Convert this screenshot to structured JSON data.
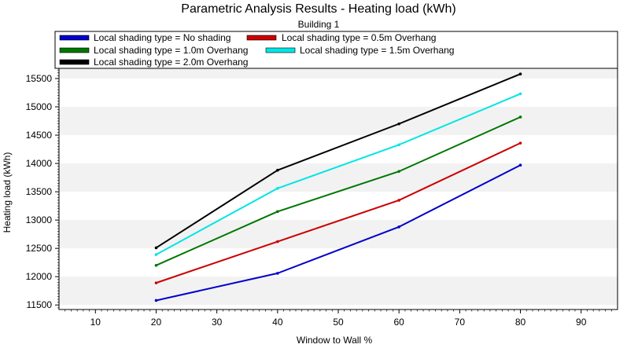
{
  "chart_data": {
    "type": "line",
    "title": "Parametric Analysis Results -  Heating load (kWh)",
    "subtitle": "Building 1",
    "xlabel": "Window to Wall %",
    "ylabel": "Heating load (kWh)",
    "xlim": [
      4,
      96
    ],
    "ylim": [
      11420,
      15680
    ],
    "xticks": [
      10,
      20,
      30,
      40,
      50,
      60,
      70,
      80,
      90
    ],
    "yticks": [
      11500,
      12000,
      12500,
      13000,
      13500,
      14000,
      14500,
      15000,
      15500
    ],
    "grid": "horizontal bands",
    "legend_position": "top",
    "x": [
      20,
      40,
      60,
      80
    ],
    "series": [
      {
        "name": "Local shading type = No shading",
        "color": "#0000cc",
        "values": [
          11580,
          12060,
          12880,
          13970
        ]
      },
      {
        "name": "Local shading type = 0.5m Overhang",
        "color": "#cc0000",
        "values": [
          11890,
          12620,
          13350,
          14360
        ]
      },
      {
        "name": "Local shading type = 1.0m Overhang",
        "color": "#007700",
        "values": [
          12200,
          13150,
          13860,
          14820
        ]
      },
      {
        "name": "Local shading type = 1.5m Overhang",
        "color": "#00e5e5",
        "values": [
          12390,
          13560,
          14330,
          15230
        ]
      },
      {
        "name": "Local shading type = 2.0m Overhang",
        "color": "#000000",
        "values": [
          12510,
          13880,
          14700,
          15580
        ]
      }
    ]
  }
}
